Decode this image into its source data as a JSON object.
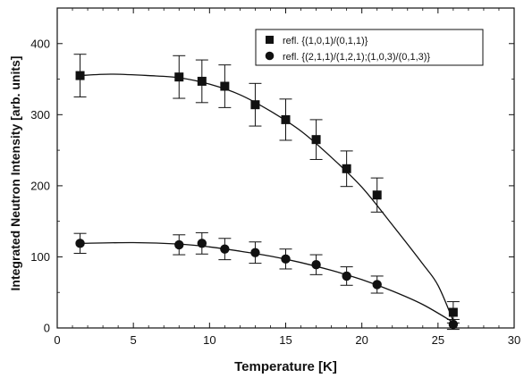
{
  "chart_data": {
    "type": "scatter",
    "title": "",
    "xlabel": "Temperature [K]",
    "ylabel": "Integrated Neutron Intensity [arb. units]",
    "xlim": [
      0,
      30
    ],
    "ylim": [
      0,
      450
    ],
    "xticks": [
      "0",
      "5",
      "10",
      "15",
      "20",
      "25",
      "30"
    ],
    "yticks": [
      "0",
      "100",
      "200",
      "300",
      "400"
    ],
    "legend_position": "top-right",
    "grid": false,
    "series": [
      {
        "name": "refl. {(1,0,1)/(0,1,1)}",
        "marker": "square",
        "x": [
          1.5,
          8.0,
          9.5,
          11.0,
          13.0,
          15.0,
          17.0,
          19.0,
          21.0,
          26.0
        ],
        "y": [
          355,
          353,
          347,
          340,
          314,
          293,
          265,
          224,
          187,
          22
        ],
        "yerr": [
          30,
          30,
          30,
          30,
          30,
          29,
          28,
          25,
          24,
          15
        ],
        "fit": [
          [
            1.5,
            355
          ],
          [
            3.5,
            357
          ],
          [
            6,
            355
          ],
          [
            8,
            352
          ],
          [
            10,
            343
          ],
          [
            12,
            328
          ],
          [
            14,
            305
          ],
          [
            16,
            277
          ],
          [
            18,
            240
          ],
          [
            20,
            198
          ],
          [
            22,
            145
          ],
          [
            24,
            90
          ],
          [
            25,
            60
          ],
          [
            26,
            10
          ]
        ]
      },
      {
        "name": "refl. {(2,1,1)/(1,2,1);(1,0,3)/(0,1,3)}",
        "marker": "circle",
        "x": [
          1.5,
          8.0,
          9.5,
          11.0,
          13.0,
          15.0,
          17.0,
          19.0,
          21.0,
          26.0
        ],
        "y": [
          119,
          117,
          119,
          111,
          106,
          97,
          89,
          73,
          61,
          5
        ],
        "yerr": [
          14,
          14,
          15,
          15,
          15,
          14,
          14,
          13,
          12,
          7
        ],
        "fit": [
          [
            1.5,
            119
          ],
          [
            5,
            120
          ],
          [
            8,
            118
          ],
          [
            10,
            114
          ],
          [
            12,
            108
          ],
          [
            14,
            101
          ],
          [
            16,
            92
          ],
          [
            18,
            81
          ],
          [
            20,
            68
          ],
          [
            22,
            52
          ],
          [
            24,
            33
          ],
          [
            26,
            8
          ]
        ]
      }
    ]
  }
}
